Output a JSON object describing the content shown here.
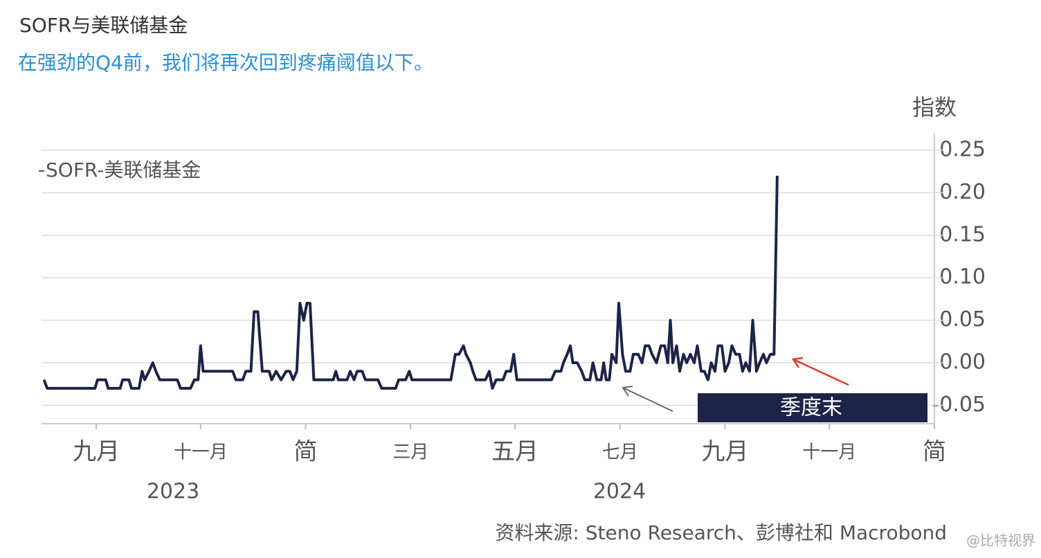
{
  "chart_data": {
    "type": "line",
    "title": "SOFR与美联储基金",
    "subtitle": "在强劲的Q4前，我们将再次回到疼痛阈值以下。",
    "y_axis_label": "指数",
    "source": "资料来源: Steno Research、彭博社和 Macrobond",
    "watermark": "@比特视界",
    "annotation": "季度末",
    "year_labels": [
      "2023",
      "2024"
    ],
    "x": [
      2023.584,
      2023.589,
      2023.665,
      2023.669,
      2023.682,
      2023.686,
      2023.705,
      2023.709,
      2023.719,
      2023.723,
      2023.735,
      2023.74,
      2023.744,
      2023.751,
      2023.757,
      2023.762,
      2023.768,
      2023.796,
      2023.801,
      2023.817,
      2023.823,
      2023.829,
      2023.833,
      2023.837,
      2023.884,
      2023.889,
      2023.9,
      2023.905,
      2023.913,
      2023.918,
      2023.924,
      2023.931,
      2023.942,
      2023.946,
      2023.953,
      2023.961,
      2023.969,
      2023.975,
      2023.98,
      2023.986,
      2023.991,
      2023.997,
      2024.002,
      2024.007,
      2024.013,
      2024.044,
      2024.048,
      2024.052,
      2024.066,
      2024.071,
      2024.077,
      2024.082,
      2024.09,
      2024.095,
      2024.115,
      2024.121,
      2024.143,
      2024.148,
      2024.159,
      2024.165,
      2024.169,
      2024.231,
      2024.238,
      2024.244,
      2024.251,
      2024.255,
      2024.262,
      2024.266,
      2024.271,
      2024.286,
      2024.292,
      2024.297,
      2024.303,
      2024.314,
      2024.319,
      2024.326,
      2024.331,
      2024.336,
      2024.391,
      2024.397,
      2024.406,
      2024.41,
      2024.416,
      2024.421,
      2024.425,
      2024.432,
      2024.439,
      2024.444,
      2024.452,
      2024.457,
      2024.463,
      2024.47,
      2024.474,
      2024.478,
      2024.483,
      2024.487,
      2024.494,
      2024.498,
      2024.504,
      2024.509,
      2024.516,
      2024.521,
      2024.529,
      2024.535,
      2024.54,
      2024.546,
      2024.551,
      2024.558,
      2024.565,
      2024.571,
      2024.576,
      2024.58,
      2024.584,
      2024.59,
      2024.595,
      2024.601,
      2024.606,
      2024.612,
      2024.618,
      2024.623,
      2024.629,
      2024.634,
      2024.64,
      2024.645,
      2024.651,
      2024.656,
      2024.662,
      2024.667,
      2024.673,
      2024.678,
      2024.684,
      2024.69,
      2024.695,
      2024.7,
      2024.706,
      2024.711,
      2024.717,
      2024.722,
      2024.728,
      2024.733,
      2024.739,
      2024.745,
      2024.75
    ],
    "series": [
      {
        "name": "SOFR-美联储基金",
        "color": "#1c2447",
        "values": [
          -0.02,
          -0.03,
          -0.03,
          -0.02,
          -0.02,
          -0.03,
          -0.03,
          -0.02,
          -0.02,
          -0.03,
          -0.03,
          -0.01,
          -0.02,
          -0.01,
          0.0,
          -0.01,
          -0.02,
          -0.02,
          -0.03,
          -0.03,
          -0.02,
          -0.02,
          0.02,
          -0.01,
          -0.01,
          -0.02,
          -0.02,
          -0.01,
          -0.01,
          0.06,
          0.06,
          -0.01,
          -0.01,
          -0.02,
          -0.01,
          -0.02,
          -0.01,
          -0.01,
          -0.02,
          -0.01,
          0.07,
          0.05,
          0.07,
          0.07,
          -0.02,
          -0.02,
          -0.01,
          -0.02,
          -0.02,
          -0.01,
          -0.02,
          -0.01,
          -0.01,
          -0.02,
          -0.02,
          -0.03,
          -0.03,
          -0.02,
          -0.02,
          -0.01,
          -0.02,
          -0.02,
          0.01,
          0.01,
          0.02,
          0.01,
          0.0,
          -0.01,
          -0.02,
          -0.02,
          -0.01,
          -0.03,
          -0.02,
          -0.02,
          -0.01,
          -0.01,
          0.01,
          -0.02,
          -0.02,
          -0.01,
          -0.01,
          0.0,
          0.01,
          0.02,
          0.0,
          0.0,
          -0.01,
          -0.02,
          -0.02,
          0.0,
          -0.02,
          -0.02,
          0.0,
          -0.02,
          -0.02,
          0.01,
          0.0,
          0.07,
          0.01,
          -0.01,
          -0.01,
          0.01,
          0.01,
          0.0,
          0.02,
          0.02,
          0.01,
          0.0,
          0.02,
          0.02,
          0.0,
          0.05,
          0.0,
          0.02,
          -0.01,
          0.01,
          0.0,
          0.01,
          0.0,
          0.02,
          -0.01,
          -0.01,
          -0.02,
          0.0,
          -0.01,
          0.02,
          0.02,
          -0.01,
          0.0,
          0.02,
          0.01,
          0.01,
          -0.01,
          0.0,
          -0.01,
          0.05,
          -0.01,
          0.0,
          0.01,
          0.0,
          0.01,
          0.01,
          0.22
        ]
      }
    ],
    "xlim": [
      2023.58,
      2025.0
    ],
    "xticks": [
      {
        "value": 2023.667,
        "label": "九月"
      },
      {
        "value": 2023.833,
        "label": "十一月"
      },
      {
        "value": 2024.0,
        "label": "简"
      },
      {
        "value": 2024.167,
        "label": "三月"
      },
      {
        "value": 2024.333,
        "label": "五月"
      },
      {
        "value": 2024.5,
        "label": "七月"
      },
      {
        "value": 2024.667,
        "label": "九月"
      },
      {
        "value": 2024.833,
        "label": "十一月"
      },
      {
        "value": 2025.0,
        "label": "简"
      }
    ],
    "ylim": [
      -0.07,
      0.27
    ],
    "yticks": [
      -0.05,
      {
        "value": 0,
        "label": "0.00"
      },
      0.05,
      {
        "value": 0.1,
        "label": "0.10"
      },
      0.15,
      {
        "value": 0.2,
        "label": "0.20"
      },
      0.25
    ],
    "grid": true
  }
}
